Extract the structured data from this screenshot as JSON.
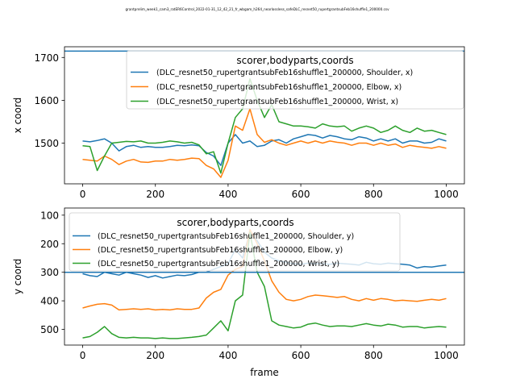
{
  "figure_title": "grantprelim_week1_cam3_ratER6Control_2022-01-31_12_42_21_fr_wbgam_h264_nearlossless_safeDLC_resnet50_rupertgrantsubFeb16shuffle1_200000.csv",
  "chart_data": [
    {
      "type": "line",
      "title": "",
      "xlabel": "",
      "ylabel": "x coord",
      "xlim": [
        -50,
        1050
      ],
      "ylim": [
        1405,
        1725
      ],
      "y_inverted": false,
      "xticks": [
        0,
        200,
        400,
        600,
        800,
        1000
      ],
      "yticks": [
        1500,
        1600,
        1700
      ],
      "hline": 1715,
      "legend": {
        "title": "scorer,bodyparts,coords",
        "placement": "upper right"
      },
      "series": [
        {
          "name": "(DLC_resnet50_rupertgrantsubFeb16shuffle1_200000, Shoulder, x)",
          "color": "#1f77b4",
          "x": [
            0,
            20,
            40,
            60,
            80,
            100,
            120,
            140,
            160,
            180,
            200,
            220,
            240,
            260,
            280,
            300,
            320,
            340,
            360,
            380,
            400,
            420,
            440,
            460,
            480,
            500,
            520,
            540,
            560,
            580,
            600,
            620,
            640,
            660,
            680,
            700,
            720,
            740,
            760,
            780,
            800,
            820,
            840,
            860,
            880,
            900,
            920,
            940,
            960,
            980,
            1000
          ],
          "y": [
            1505,
            1503,
            1506,
            1510,
            1500,
            1482,
            1492,
            1495,
            1490,
            1492,
            1490,
            1490,
            1492,
            1495,
            1494,
            1496,
            1494,
            1478,
            1470,
            1448,
            1500,
            1520,
            1500,
            1505,
            1492,
            1495,
            1505,
            1508,
            1500,
            1510,
            1515,
            1520,
            1518,
            1512,
            1518,
            1515,
            1510,
            1508,
            1515,
            1512,
            1505,
            1510,
            1505,
            1510,
            1500,
            1505,
            1505,
            1500,
            1502,
            1510,
            1505
          ]
        },
        {
          "name": "(DLC_resnet50_rupertgrantsubFeb16shuffle1_200000, Elbow, x)",
          "color": "#ff7f0e",
          "x": [
            0,
            20,
            40,
            60,
            80,
            100,
            120,
            140,
            160,
            180,
            200,
            220,
            240,
            260,
            280,
            300,
            320,
            340,
            360,
            380,
            400,
            420,
            440,
            460,
            480,
            500,
            520,
            540,
            560,
            580,
            600,
            620,
            640,
            660,
            680,
            700,
            720,
            740,
            760,
            780,
            800,
            820,
            840,
            860,
            880,
            900,
            920,
            940,
            960,
            980,
            1000
          ],
          "y": [
            1462,
            1460,
            1458,
            1470,
            1462,
            1450,
            1458,
            1462,
            1456,
            1455,
            1458,
            1458,
            1462,
            1460,
            1462,
            1465,
            1464,
            1448,
            1440,
            1420,
            1460,
            1540,
            1530,
            1580,
            1520,
            1502,
            1508,
            1500,
            1495,
            1500,
            1505,
            1500,
            1505,
            1500,
            1505,
            1502,
            1500,
            1495,
            1500,
            1500,
            1495,
            1500,
            1495,
            1498,
            1490,
            1495,
            1492,
            1490,
            1488,
            1492,
            1488
          ]
        },
        {
          "name": "(DLC_resnet50_rupertgrantsubFeb16shuffle1_200000, Wrist, x)",
          "color": "#2ca02c",
          "x": [
            0,
            20,
            40,
            60,
            80,
            100,
            120,
            140,
            160,
            180,
            200,
            220,
            240,
            260,
            280,
            300,
            320,
            340,
            360,
            380,
            400,
            420,
            440,
            460,
            480,
            500,
            520,
            540,
            560,
            580,
            600,
            620,
            640,
            660,
            680,
            700,
            720,
            740,
            760,
            780,
            800,
            820,
            840,
            860,
            880,
            900,
            920,
            940,
            960,
            980,
            1000
          ],
          "y": [
            1494,
            1492,
            1436,
            1470,
            1500,
            1502,
            1504,
            1503,
            1505,
            1500,
            1500,
            1502,
            1505,
            1503,
            1500,
            1502,
            1496,
            1475,
            1480,
            1430,
            1500,
            1560,
            1580,
            1650,
            1600,
            1560,
            1590,
            1550,
            1545,
            1540,
            1540,
            1538,
            1535,
            1545,
            1540,
            1538,
            1540,
            1528,
            1535,
            1540,
            1535,
            1525,
            1530,
            1540,
            1530,
            1525,
            1535,
            1528,
            1530,
            1525,
            1520
          ]
        }
      ]
    },
    {
      "type": "line",
      "title": "",
      "xlabel": "frame",
      "ylabel": "y coord",
      "xlim": [
        -50,
        1050
      ],
      "ylim": [
        555,
        75
      ],
      "y_inverted": true,
      "xticks": [
        0,
        200,
        400,
        600,
        800,
        1000
      ],
      "yticks": [
        100,
        200,
        300,
        400,
        500
      ],
      "hline": 300,
      "legend": {
        "title": "scorer,bodyparts,coords",
        "placement": "upper left"
      },
      "series": [
        {
          "name": "(DLC_resnet50_rupertgrantsubFeb16shuffle1_200000, Shoulder, y)",
          "color": "#1f77b4",
          "x": [
            0,
            20,
            40,
            60,
            80,
            100,
            120,
            140,
            160,
            180,
            200,
            220,
            240,
            260,
            280,
            300,
            320,
            340,
            360,
            380,
            400,
            420,
            440,
            460,
            480,
            500,
            520,
            540,
            560,
            580,
            600,
            620,
            640,
            660,
            680,
            700,
            720,
            740,
            760,
            780,
            800,
            820,
            840,
            860,
            880,
            900,
            920,
            940,
            960,
            980,
            1000
          ],
          "y": [
            305,
            312,
            315,
            300,
            305,
            310,
            300,
            305,
            310,
            318,
            312,
            320,
            315,
            310,
            312,
            308,
            300,
            300,
            290,
            280,
            270,
            220,
            250,
            160,
            190,
            230,
            250,
            260,
            265,
            270,
            272,
            268,
            270,
            270,
            272,
            268,
            270,
            272,
            275,
            265,
            270,
            272,
            268,
            270,
            272,
            275,
            285,
            280,
            282,
            278,
            275
          ]
        },
        {
          "name": "(DLC_resnet50_rupertgrantsubFeb16shuffle1_200000, Elbow, y)",
          "color": "#ff7f0e",
          "x": [
            0,
            20,
            40,
            60,
            80,
            100,
            120,
            140,
            160,
            180,
            200,
            220,
            240,
            260,
            280,
            300,
            320,
            340,
            360,
            380,
            400,
            420,
            440,
            460,
            480,
            500,
            520,
            540,
            560,
            580,
            600,
            620,
            640,
            660,
            680,
            700,
            720,
            740,
            760,
            780,
            800,
            820,
            840,
            860,
            880,
            900,
            920,
            940,
            960,
            980,
            1000
          ],
          "y": [
            425,
            418,
            412,
            410,
            415,
            432,
            430,
            428,
            430,
            428,
            432,
            430,
            432,
            428,
            430,
            430,
            425,
            390,
            370,
            360,
            310,
            290,
            280,
            150,
            200,
            260,
            330,
            370,
            395,
            400,
            395,
            385,
            380,
            382,
            385,
            388,
            385,
            395,
            400,
            392,
            398,
            392,
            395,
            400,
            398,
            400,
            402,
            398,
            395,
            398,
            392
          ]
        },
        {
          "name": "(DLC_resnet50_rupertgrantsubFeb16shuffle1_200000, Wrist, y)",
          "color": "#2ca02c",
          "x": [
            0,
            20,
            40,
            60,
            80,
            100,
            120,
            140,
            160,
            180,
            200,
            220,
            240,
            260,
            280,
            300,
            320,
            340,
            360,
            380,
            400,
            420,
            440,
            460,
            480,
            500,
            520,
            540,
            560,
            580,
            600,
            620,
            640,
            660,
            680,
            700,
            720,
            740,
            760,
            780,
            800,
            820,
            840,
            860,
            880,
            900,
            920,
            940,
            960,
            980,
            1000
          ],
          "y": [
            530,
            525,
            510,
            490,
            515,
            528,
            530,
            528,
            530,
            530,
            532,
            530,
            532,
            532,
            530,
            528,
            525,
            520,
            495,
            470,
            505,
            400,
            380,
            160,
            300,
            350,
            470,
            485,
            490,
            495,
            492,
            482,
            478,
            485,
            490,
            488,
            488,
            490,
            485,
            480,
            485,
            488,
            482,
            485,
            492,
            490,
            490,
            495,
            492,
            490,
            492
          ]
        }
      ]
    }
  ]
}
